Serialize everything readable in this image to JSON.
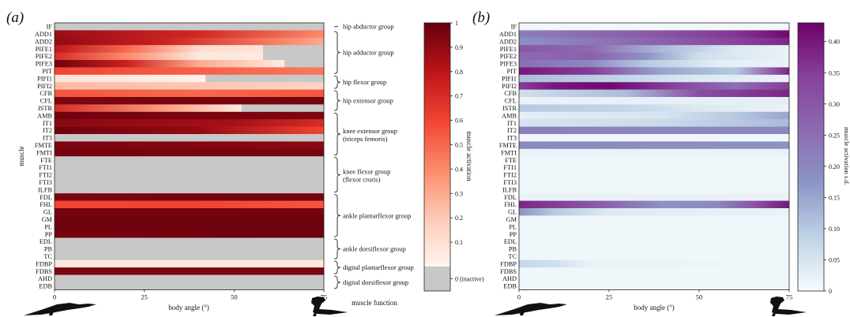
{
  "panels": [
    {
      "label_open": "(",
      "label_letter": "a",
      "label_close": ")"
    },
    {
      "label_open": "(",
      "label_letter": "b",
      "label_close": ")"
    }
  ],
  "colors": {
    "inactive": "#c8c8c8",
    "reds": [
      "#fff5f0",
      "#fdcab5",
      "#fc8a6a",
      "#f14432",
      "#bc141a",
      "#67000d"
    ],
    "purples": [
      "#f7fcfd",
      "#bfd3e6",
      "#8c96c6",
      "#8c6bb1",
      "#88419d",
      "#6e016b"
    ]
  },
  "chart_data": [
    {
      "type": "heatmap",
      "title": "",
      "xlabel": "body angle (°)",
      "ylabel": "muscle",
      "xlim": [
        0,
        75
      ],
      "xticks": [
        0,
        25,
        50,
        75
      ],
      "muscles": [
        "IF",
        "ADD1",
        "ADD2",
        "PIFE1",
        "PIFE2",
        "PIFE3",
        "PIT",
        "PIFI1",
        "PIFI2",
        "CFB",
        "CFL",
        "ISTR",
        "AMB",
        "IT1",
        "IT2",
        "IT3",
        "FMTE",
        "FMTI",
        "FTE",
        "FTI1",
        "FTI2",
        "FTI3",
        "ILFB",
        "FDL",
        "FHL",
        "GL",
        "GM",
        "PL",
        "PP",
        "EDL",
        "PB",
        "TC",
        "FDBP",
        "FDBS",
        "AHD",
        "EDB"
      ],
      "colorbar": {
        "label": "muscle activation",
        "range": [
          0,
          1
        ],
        "ticks": [
          "0.1",
          "0.2",
          "0.3",
          "0.4",
          "0.5",
          "0.6",
          "0.7",
          "0.8",
          "0.9",
          "1"
        ],
        "inactive_label": "0 (inactive)"
      },
      "profiles": {
        "IF": [
          [
            0,
            -1
          ],
          [
            75,
            -1
          ]
        ],
        "ADD1": [
          [
            0,
            0.88
          ],
          [
            40,
            0.72
          ],
          [
            75,
            0.4
          ]
        ],
        "ADD2": [
          [
            0,
            0.9
          ],
          [
            30,
            0.75
          ],
          [
            60,
            0.45
          ],
          [
            75,
            0.3
          ]
        ],
        "PIFE1": [
          [
            0,
            0.8
          ],
          [
            20,
            0.5
          ],
          [
            40,
            0.12
          ],
          [
            58,
            0.08
          ],
          [
            58.1,
            -1
          ],
          [
            75,
            -1
          ]
        ],
        "PIFE2": [
          [
            0,
            0.7
          ],
          [
            20,
            0.4
          ],
          [
            40,
            0.06
          ],
          [
            58,
            0.05
          ],
          [
            58.1,
            -1
          ],
          [
            75,
            -1
          ]
        ],
        "PIFE3": [
          [
            0,
            0.98
          ],
          [
            20,
            0.75
          ],
          [
            40,
            0.3
          ],
          [
            60,
            0.1
          ],
          [
            64,
            0.05
          ],
          [
            64.1,
            -1
          ],
          [
            75,
            -1
          ]
        ],
        "PIT": [
          [
            0,
            0.6
          ],
          [
            50,
            0.5
          ],
          [
            75,
            0.45
          ]
        ],
        "PIFI1": [
          [
            0,
            0.08
          ],
          [
            42,
            0.02
          ],
          [
            42.1,
            -1
          ],
          [
            75,
            -1
          ]
        ],
        "PIFI2": [
          [
            0,
            0.25
          ],
          [
            50,
            0.2
          ],
          [
            75,
            0.15
          ]
        ],
        "CFB": [
          [
            0,
            0.55
          ],
          [
            40,
            0.5
          ],
          [
            75,
            0.55
          ]
        ],
        "CFL": [
          [
            0,
            0.95
          ],
          [
            75,
            0.97
          ]
        ],
        "ISTR": [
          [
            0,
            0.7
          ],
          [
            30,
            0.35
          ],
          [
            52,
            0.05
          ],
          [
            52.1,
            -1
          ],
          [
            75,
            -1
          ]
        ],
        "AMB": [
          [
            0,
            0.97
          ],
          [
            75,
            0.95
          ]
        ],
        "IT1": [
          [
            0,
            0.92
          ],
          [
            50,
            0.85
          ],
          [
            75,
            0.7
          ]
        ],
        "IT2": [
          [
            0,
            0.98
          ],
          [
            40,
            0.9
          ],
          [
            75,
            0.6
          ]
        ],
        "IT3": [
          [
            0,
            -1
          ],
          [
            75,
            -1
          ]
        ],
        "FMTE": [
          [
            0,
            0.95
          ],
          [
            75,
            0.92
          ]
        ],
        "FMTI": [
          [
            0,
            0.97
          ],
          [
            75,
            0.96
          ]
        ],
        "FTE": [
          [
            0,
            -1
          ],
          [
            75,
            -1
          ]
        ],
        "FTI1": [
          [
            0,
            -1
          ],
          [
            75,
            -1
          ]
        ],
        "FTI2": [
          [
            0,
            -1
          ],
          [
            75,
            -1
          ]
        ],
        "FTI3": [
          [
            0,
            -1
          ],
          [
            75,
            -1
          ]
        ],
        "ILFB": [
          [
            0,
            -1
          ],
          [
            75,
            -1
          ]
        ],
        "FDL": [
          [
            0,
            0.96
          ],
          [
            75,
            0.97
          ]
        ],
        "FHL": [
          [
            0,
            0.6
          ],
          [
            40,
            0.6
          ],
          [
            75,
            0.55
          ]
        ],
        "GL": [
          [
            0,
            0.96
          ],
          [
            75,
            0.96
          ]
        ],
        "GM": [
          [
            0,
            0.98
          ],
          [
            75,
            0.98
          ]
        ],
        "PL": [
          [
            0,
            0.98
          ],
          [
            75,
            0.98
          ]
        ],
        "PP": [
          [
            0,
            0.97
          ],
          [
            75,
            0.99
          ]
        ],
        "EDL": [
          [
            0,
            -1
          ],
          [
            75,
            -1
          ]
        ],
        "PB": [
          [
            0,
            -1
          ],
          [
            75,
            -1
          ]
        ],
        "TC": [
          [
            0,
            -1
          ],
          [
            75,
            -1
          ]
        ],
        "FDBP": [
          [
            0,
            0.06
          ],
          [
            75,
            0.06
          ]
        ],
        "FDBS": [
          [
            0,
            0.95
          ],
          [
            75,
            0.95
          ]
        ],
        "AHD": [
          [
            0,
            -1
          ],
          [
            75,
            -1
          ]
        ],
        "EDB": [
          [
            0,
            -1
          ],
          [
            75,
            -1
          ]
        ]
      },
      "groups": [
        {
          "label": "hip abductor group",
          "muscles": [
            "IF"
          ]
        },
        {
          "label": "hip adductor group",
          "muscles": [
            "ADD1",
            "ADD2",
            "PIFE1",
            "PIFE2",
            "PIFE3",
            "PIT"
          ]
        },
        {
          "label": "hip flexor group",
          "muscles": [
            "PIFI1",
            "PIFI2"
          ]
        },
        {
          "label": "hip extensor group",
          "muscles": [
            "CFB",
            "CFL",
            "ISTR"
          ]
        },
        {
          "label": "knee extensor group",
          "label2": "(triceps femoris)",
          "muscles": [
            "AMB",
            "IT1",
            "IT2",
            "IT3",
            "FMTE",
            "FMTI"
          ]
        },
        {
          "label": "knee flexor group",
          "label2": "(flexor cruris)",
          "muscles": [
            "FTE",
            "FTI1",
            "FTI2",
            "FTI3",
            "ILFB"
          ]
        },
        {
          "label": "ankle plantarflexor group",
          "muscles": [
            "FDL",
            "FHL",
            "GL",
            "GM",
            "PL",
            "PP"
          ]
        },
        {
          "label": "ankle dorsiflexor group",
          "muscles": [
            "EDL",
            "PB",
            "TC"
          ]
        },
        {
          "label": "digital plantarflexor group",
          "muscles": [
            "FDBP",
            "FDBS"
          ]
        },
        {
          "label": "digital dorsiflexor group",
          "muscles": [
            "AHD",
            "EDB"
          ]
        }
      ],
      "groups_xlabel": "muscle function"
    },
    {
      "type": "heatmap",
      "title": "",
      "xlabel": "body angle (°)",
      "xlim": [
        0,
        75
      ],
      "xticks": [
        0,
        25,
        50,
        75
      ],
      "muscles": [
        "IF",
        "ADD1",
        "ADD2",
        "PIFE1",
        "PIFE2",
        "PIFE3",
        "PIT",
        "PIFI1",
        "PIFI2",
        "CFB",
        "CFL",
        "ISTR",
        "AMB",
        "IT1",
        "IT2",
        "IT3",
        "FMTE",
        "FMTI",
        "FTE",
        "FTI1",
        "FTI2",
        "FTI3",
        "ILFB",
        "FDL",
        "FHL",
        "GL",
        "GM",
        "PL",
        "PP",
        "EDL",
        "PB",
        "TC",
        "FDBP",
        "FDBS",
        "AHD",
        "EDB"
      ],
      "colorbar": {
        "label": "muscle activation s.d.",
        "range": [
          0,
          0.43
        ],
        "ticks": [
          "0",
          "0.05",
          "0.10",
          "0.15",
          "0.20",
          "0.25",
          "0.30",
          "0.35",
          "0.40"
        ]
      },
      "profiles": {
        "IF": [
          [
            0,
            0.01
          ],
          [
            75,
            0.01
          ]
        ],
        "ADD1": [
          [
            0,
            0.22
          ],
          [
            40,
            0.3
          ],
          [
            60,
            0.36
          ],
          [
            75,
            0.42
          ]
        ],
        "ADD2": [
          [
            0,
            0.18
          ],
          [
            40,
            0.28
          ],
          [
            60,
            0.34
          ],
          [
            75,
            0.38
          ]
        ],
        "PIFE1": [
          [
            0,
            0.3
          ],
          [
            20,
            0.26
          ],
          [
            40,
            0.12
          ],
          [
            60,
            0.04
          ],
          [
            75,
            0.02
          ]
        ],
        "PIFE2": [
          [
            0,
            0.26
          ],
          [
            20,
            0.28
          ],
          [
            35,
            0.18
          ],
          [
            50,
            0.06
          ],
          [
            75,
            0.02
          ]
        ],
        "PIFE3": [
          [
            0,
            0.25
          ],
          [
            20,
            0.2
          ],
          [
            35,
            0.1
          ],
          [
            55,
            0.03
          ],
          [
            75,
            0.02
          ]
        ],
        "PIT": [
          [
            0,
            0.4
          ],
          [
            20,
            0.35
          ],
          [
            40,
            0.15
          ],
          [
            60,
            0.1
          ],
          [
            75,
            0.38
          ]
        ],
        "PIFI1": [
          [
            0,
            0.12
          ],
          [
            30,
            0.08
          ],
          [
            50,
            0.04
          ],
          [
            75,
            0.02
          ]
        ],
        "PIFI2": [
          [
            0,
            0.35
          ],
          [
            10,
            0.4
          ],
          [
            25,
            0.42
          ],
          [
            45,
            0.33
          ],
          [
            60,
            0.25
          ],
          [
            75,
            0.35
          ]
        ],
        "CFB": [
          [
            0,
            0.06
          ],
          [
            30,
            0.12
          ],
          [
            50,
            0.32
          ],
          [
            75,
            0.38
          ]
        ],
        "CFL": [
          [
            0,
            0.02
          ],
          [
            75,
            0.03
          ]
        ],
        "ISTR": [
          [
            0,
            0.1
          ],
          [
            30,
            0.08
          ],
          [
            50,
            0.04
          ],
          [
            75,
            0.02
          ]
        ],
        "AMB": [
          [
            0,
            0.03
          ],
          [
            40,
            0.05
          ],
          [
            60,
            0.1
          ],
          [
            75,
            0.15
          ]
        ],
        "IT1": [
          [
            0,
            0.05
          ],
          [
            40,
            0.07
          ],
          [
            75,
            0.12
          ]
        ],
        "IT2": [
          [
            0,
            0.22
          ],
          [
            40,
            0.2
          ],
          [
            75,
            0.2
          ]
        ],
        "IT3": [
          [
            0,
            0.01
          ],
          [
            75,
            0.01
          ]
        ],
        "FMTE": [
          [
            0,
            0.2
          ],
          [
            75,
            0.18
          ]
        ],
        "FMTI": [
          [
            0,
            0.02
          ],
          [
            75,
            0.02
          ]
        ],
        "FTE": [
          [
            0,
            0.01
          ],
          [
            75,
            0.01
          ]
        ],
        "FTI1": [
          [
            0,
            0.01
          ],
          [
            75,
            0.01
          ]
        ],
        "FTI2": [
          [
            0,
            0.01
          ],
          [
            75,
            0.01
          ]
        ],
        "FTI3": [
          [
            0,
            0.01
          ],
          [
            75,
            0.01
          ]
        ],
        "ILFB": [
          [
            0,
            0.01
          ],
          [
            75,
            0.01
          ]
        ],
        "FDL": [
          [
            0,
            0.02
          ],
          [
            75,
            0.02
          ]
        ],
        "FHL": [
          [
            0,
            0.38
          ],
          [
            20,
            0.3
          ],
          [
            40,
            0.18
          ],
          [
            55,
            0.2
          ],
          [
            65,
            0.3
          ],
          [
            75,
            0.4
          ]
        ],
        "GL": [
          [
            0,
            0.18
          ],
          [
            10,
            0.1
          ],
          [
            25,
            0.04
          ],
          [
            75,
            0.02
          ]
        ],
        "GM": [
          [
            0,
            0.01
          ],
          [
            75,
            0.01
          ]
        ],
        "PL": [
          [
            0,
            0.01
          ],
          [
            75,
            0.01
          ]
        ],
        "PP": [
          [
            0,
            0.01
          ],
          [
            75,
            0.01
          ]
        ],
        "EDL": [
          [
            0,
            0.01
          ],
          [
            75,
            0.01
          ]
        ],
        "PB": [
          [
            0,
            0.01
          ],
          [
            75,
            0.01
          ]
        ],
        "TC": [
          [
            0,
            0.01
          ],
          [
            75,
            0.01
          ]
        ],
        "FDBP": [
          [
            0,
            0.08
          ],
          [
            10,
            0.06
          ],
          [
            20,
            0.02
          ],
          [
            75,
            0.01
          ]
        ],
        "FDBS": [
          [
            0,
            0.01
          ],
          [
            75,
            0.01
          ]
        ],
        "AHD": [
          [
            0,
            0.01
          ],
          [
            75,
            0.01
          ]
        ],
        "EDB": [
          [
            0,
            0.01
          ],
          [
            75,
            0.01
          ]
        ]
      }
    }
  ]
}
